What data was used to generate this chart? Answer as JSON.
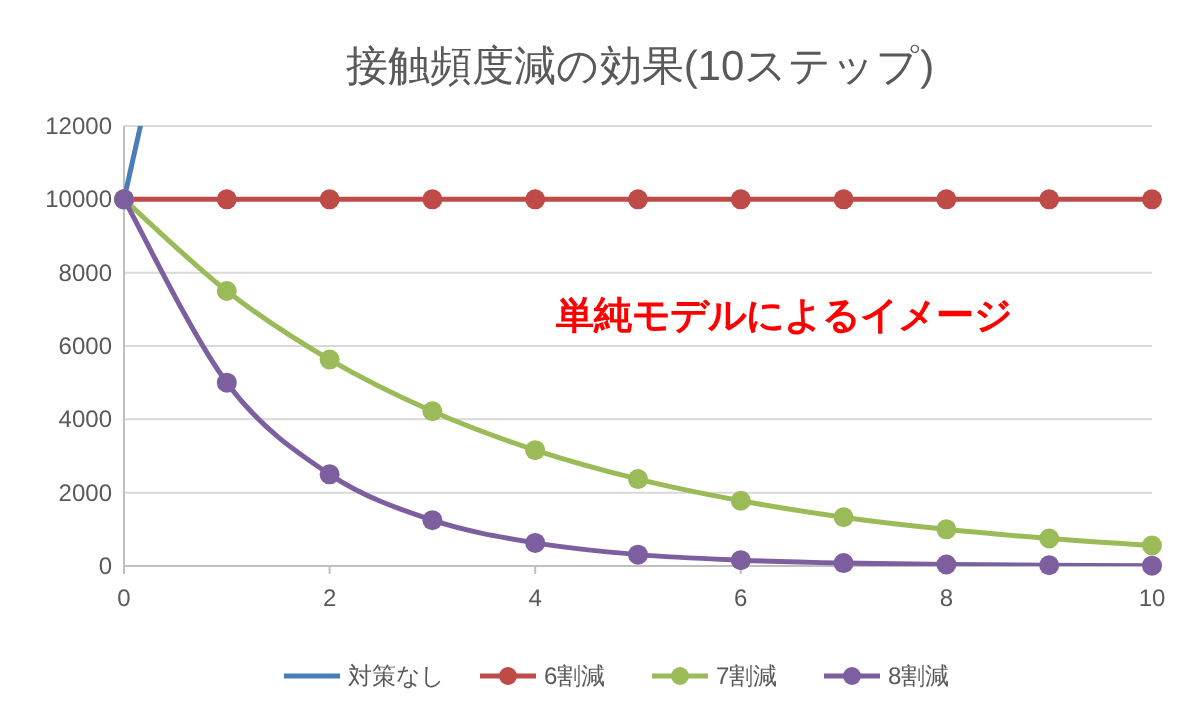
{
  "chart_data": {
    "type": "line",
    "title": "接触頻度減の効果(10ステップ)",
    "annotations": [
      "単純モデルによるイメージ"
    ],
    "x": [
      0,
      1,
      2,
      3,
      4,
      5,
      6,
      7,
      8,
      9,
      10
    ],
    "series": [
      {
        "name": "対策なし",
        "color": "#4a7ebb",
        "x": [
          0,
          0.16
        ],
        "values": [
          10000,
          12000
        ],
        "marker": "none"
      },
      {
        "name": "6割減",
        "color": "#be4b48",
        "values": [
          10000,
          10000,
          10000,
          10000,
          10000,
          10000,
          10000,
          10000,
          10000,
          10000,
          10000
        ]
      },
      {
        "name": "7割減",
        "color": "#9bbb59",
        "values": [
          10000,
          7500,
          5630,
          4220,
          3160,
          2370,
          1780,
          1330,
          1000,
          750,
          560
        ]
      },
      {
        "name": "8割減",
        "color": "#7d5fa0",
        "values": [
          10000,
          5000,
          2500,
          1250,
          630,
          310,
          160,
          80,
          40,
          20,
          10
        ]
      }
    ],
    "xlim": [
      0,
      10
    ],
    "xticks": [
      0,
      2,
      4,
      6,
      8,
      10
    ],
    "ylim": [
      0,
      12000
    ],
    "yticks": [
      0,
      2000,
      4000,
      6000,
      8000,
      10000,
      12000
    ],
    "grid": "y",
    "legend": "bottom",
    "marker": "circle",
    "line_style": "solid"
  }
}
